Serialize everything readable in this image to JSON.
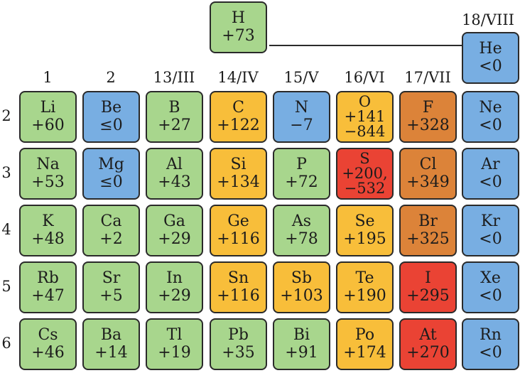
{
  "colors": {
    "green": "#a8d68d",
    "blue": "#78aee2",
    "yellow": "#f8be3a",
    "orange": "#dc8339",
    "red": "#ea4334"
  },
  "hydrogen": {
    "symbol": "H",
    "values": [
      "+73"
    ],
    "color": "green"
  },
  "helium_header": "18/VIII",
  "group_labels": [
    "1",
    "2",
    "13/III",
    "14/IV",
    "15/V",
    "16/VI",
    "17/VII"
  ],
  "periods": [
    {
      "label": "2",
      "elements": [
        {
          "symbol": "Li",
          "values": [
            "+60"
          ],
          "color": "green"
        },
        {
          "symbol": "Be",
          "values": [
            "≤0"
          ],
          "color": "blue"
        },
        {
          "symbol": "B",
          "values": [
            "+27"
          ],
          "color": "green"
        },
        {
          "symbol": "C",
          "values": [
            "+122"
          ],
          "color": "yellow"
        },
        {
          "symbol": "N",
          "values": [
            "−7"
          ],
          "color": "blue"
        },
        {
          "symbol": "O",
          "values": [
            "+141",
            "−844"
          ],
          "color": "yellow"
        },
        {
          "symbol": "F",
          "values": [
            "+328"
          ],
          "color": "orange"
        },
        {
          "symbol": "Ne",
          "values": [
            "<0"
          ],
          "color": "blue"
        }
      ]
    },
    {
      "label": "3",
      "elements": [
        {
          "symbol": "Na",
          "values": [
            "+53"
          ],
          "color": "green"
        },
        {
          "symbol": "Mg",
          "values": [
            "≤0"
          ],
          "color": "blue"
        },
        {
          "symbol": "Al",
          "values": [
            "+43"
          ],
          "color": "green"
        },
        {
          "symbol": "Si",
          "values": [
            "+134"
          ],
          "color": "yellow"
        },
        {
          "symbol": "P",
          "values": [
            "+72"
          ],
          "color": "green"
        },
        {
          "symbol": "S",
          "values": [
            "+200,",
            "−532"
          ],
          "color": "red"
        },
        {
          "symbol": "Cl",
          "values": [
            "+349"
          ],
          "color": "orange"
        },
        {
          "symbol": "Ar",
          "values": [
            "<0"
          ],
          "color": "blue"
        }
      ]
    },
    {
      "label": "4",
      "elements": [
        {
          "symbol": "K",
          "values": [
            "+48"
          ],
          "color": "green"
        },
        {
          "symbol": "Ca",
          "values": [
            "+2"
          ],
          "color": "green"
        },
        {
          "symbol": "Ga",
          "values": [
            "+29"
          ],
          "color": "green"
        },
        {
          "symbol": "Ge",
          "values": [
            "+116"
          ],
          "color": "yellow"
        },
        {
          "symbol": "As",
          "values": [
            "+78"
          ],
          "color": "green"
        },
        {
          "symbol": "Se",
          "values": [
            "+195"
          ],
          "color": "yellow"
        },
        {
          "symbol": "Br",
          "values": [
            "+325"
          ],
          "color": "orange"
        },
        {
          "symbol": "Kr",
          "values": [
            "<0"
          ],
          "color": "blue"
        }
      ]
    },
    {
      "label": "5",
      "elements": [
        {
          "symbol": "Rb",
          "values": [
            "+47"
          ],
          "color": "green"
        },
        {
          "symbol": "Sr",
          "values": [
            "+5"
          ],
          "color": "green"
        },
        {
          "symbol": "In",
          "values": [
            "+29"
          ],
          "color": "green"
        },
        {
          "symbol": "Sn",
          "values": [
            "+116"
          ],
          "color": "yellow"
        },
        {
          "symbol": "Sb",
          "values": [
            "+103"
          ],
          "color": "yellow"
        },
        {
          "symbol": "Te",
          "values": [
            "+190"
          ],
          "color": "yellow"
        },
        {
          "symbol": "I",
          "values": [
            "+295"
          ],
          "color": "red"
        },
        {
          "symbol": "Xe",
          "values": [
            "<0"
          ],
          "color": "blue"
        }
      ]
    },
    {
      "label": "6",
      "elements": [
        {
          "symbol": "Cs",
          "values": [
            "+46"
          ],
          "color": "green"
        },
        {
          "symbol": "Ba",
          "values": [
            "+14"
          ],
          "color": "green"
        },
        {
          "symbol": "Tl",
          "values": [
            "+19"
          ],
          "color": "green"
        },
        {
          "symbol": "Pb",
          "values": [
            "+35"
          ],
          "color": "green"
        },
        {
          "symbol": "Bi",
          "values": [
            "+91"
          ],
          "color": "green"
        },
        {
          "symbol": "Po",
          "values": [
            "+174"
          ],
          "color": "yellow"
        },
        {
          "symbol": "At",
          "values": [
            "+270"
          ],
          "color": "red"
        },
        {
          "symbol": "Rn",
          "values": [
            "<0"
          ],
          "color": "blue"
        }
      ]
    }
  ],
  "helium": {
    "symbol": "He",
    "values": [
      "<0"
    ],
    "color": "blue"
  }
}
